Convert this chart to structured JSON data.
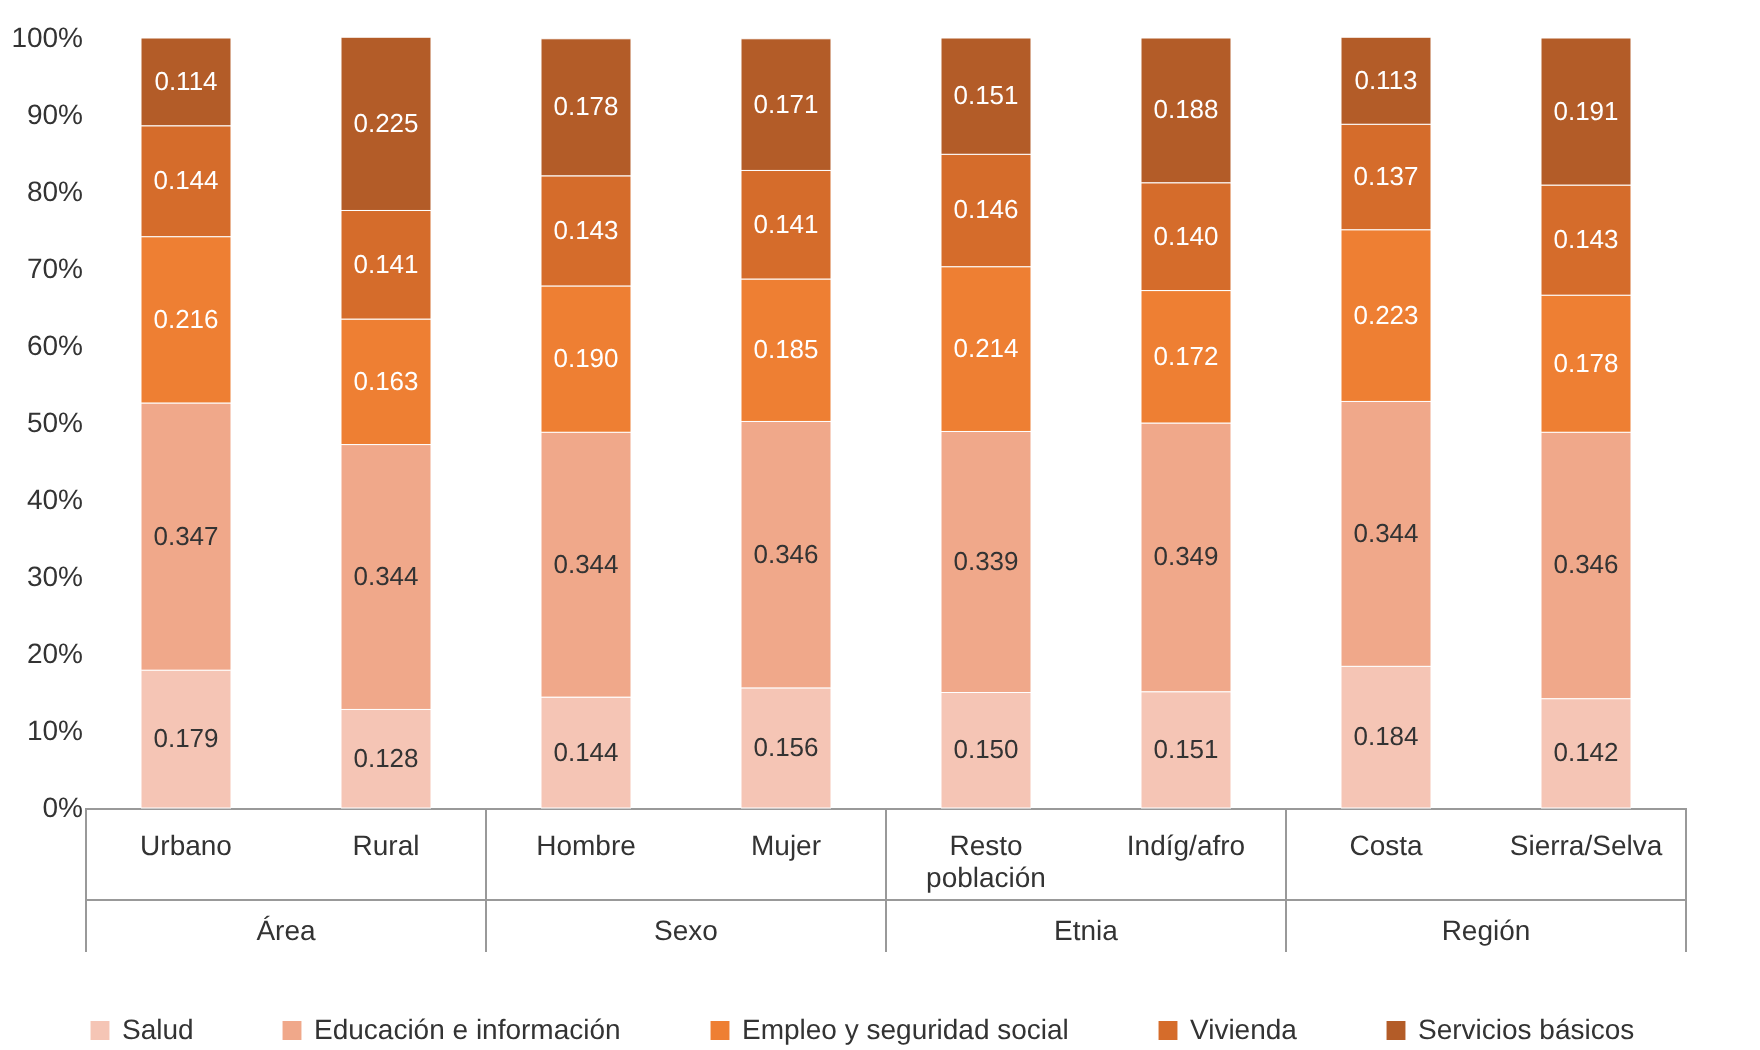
{
  "chart_data": {
    "type": "bar",
    "stacked": true,
    "categories": [
      "Urbano",
      "Rural",
      "Hombre",
      "Mujer",
      "Resto población",
      "Indíg/afro",
      "Costa",
      "Sierra/Selva"
    ],
    "series": [
      {
        "name": "Salud",
        "color": "#f5c5b5",
        "values": [
          0.179,
          0.128,
          0.144,
          0.156,
          0.15,
          0.151,
          0.184,
          0.142
        ],
        "value_labels": [
          "0.179",
          "0.128",
          "0.144",
          "0.156",
          "0.150",
          "0.151",
          "0.184",
          "0.142"
        ]
      },
      {
        "name": "Educación e información",
        "color": "#f0a88a",
        "values": [
          0.347,
          0.344,
          0.344,
          0.346,
          0.339,
          0.349,
          0.344,
          0.346
        ],
        "value_labels": [
          "0.347",
          "0.344",
          "0.344",
          "0.346",
          "0.339",
          "0.349",
          "0.344",
          "0.346"
        ]
      },
      {
        "name": "Empleo y seguridad social",
        "color": "#ee7f33",
        "values": [
          0.216,
          0.163,
          0.19,
          0.185,
          0.214,
          0.172,
          0.223,
          0.178
        ],
        "value_labels": [
          "0.216",
          "0.163",
          "0.190",
          "0.185",
          "0.214",
          "0.172",
          "0.223",
          "0.178"
        ]
      },
      {
        "name": "Vivienda",
        "color": "#d56c2b",
        "values": [
          0.144,
          0.141,
          0.143,
          0.141,
          0.146,
          0.14,
          0.137,
          0.143
        ],
        "value_labels": [
          "0.144",
          "0.141",
          "0.143",
          "0.141",
          "0.146",
          "0.140",
          "0.137",
          "0.143"
        ]
      },
      {
        "name": "Servicios básicos",
        "color": "#b35c28",
        "values": [
          0.114,
          0.225,
          0.178,
          0.171,
          0.151,
          0.188,
          0.113,
          0.191
        ],
        "value_labels": [
          "0.114",
          "0.225",
          "0.178",
          "0.171",
          "0.151",
          "0.188",
          "0.113",
          "0.191"
        ]
      }
    ],
    "ylim": [
      0,
      1
    ],
    "yticks": [
      {
        "value": 0,
        "label": "0%"
      },
      {
        "value": 0.1,
        "label": "10%"
      },
      {
        "value": 0.2,
        "label": "20%"
      },
      {
        "value": 0.3,
        "label": "30%"
      },
      {
        "value": 0.4,
        "label": "40%"
      },
      {
        "value": 0.5,
        "label": "50%"
      },
      {
        "value": 0.6,
        "label": "60%"
      },
      {
        "value": 0.7,
        "label": "70%"
      },
      {
        "value": 0.8,
        "label": "80%"
      },
      {
        "value": 0.9,
        "label": "90%"
      },
      {
        "value": 1,
        "label": "100%"
      }
    ],
    "annotations": [
      "Área",
      "Sexo",
      "Etnia",
      "Región"
    ],
    "grid": false,
    "legend": "bottom"
  }
}
